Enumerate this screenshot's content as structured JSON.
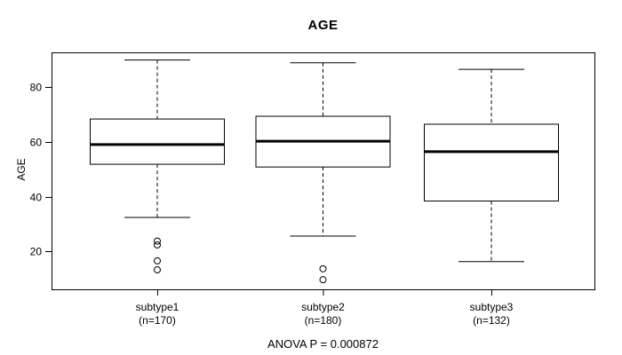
{
  "chart_data": {
    "type": "boxplot",
    "title": "AGE",
    "ylabel": "AGE",
    "yticks": [
      20,
      40,
      60,
      80
    ],
    "ylim": [
      6.2,
      92.6
    ],
    "annotation": "ANOVA P = 0.000872",
    "legend": "none",
    "grid": false,
    "colors": {
      "background": "#ffffff",
      "box_stroke": "#000000",
      "median": "#000000",
      "text": "#000000"
    },
    "groups": [
      {
        "label": "subtype1",
        "sublabel": "(n=170)",
        "n": 170,
        "whisker_low": 32.4,
        "q1": 51.8,
        "median": 59.0,
        "q3": 68.3,
        "whisker_high": 89.8,
        "outliers": [
          23.8,
          22.4,
          16.6,
          13.3
        ]
      },
      {
        "label": "subtype2",
        "sublabel": "(n=180)",
        "n": 180,
        "whisker_low": 25.6,
        "q1": 50.8,
        "median": 60.2,
        "q3": 69.3,
        "whisker_high": 88.8,
        "outliers": [
          13.7,
          9.7
        ]
      },
      {
        "label": "subtype3",
        "sublabel": "(n=132)",
        "n": 132,
        "whisker_low": 16.3,
        "q1": 38.4,
        "median": 56.4,
        "q3": 66.4,
        "whisker_high": 86.4,
        "outliers": []
      }
    ]
  }
}
